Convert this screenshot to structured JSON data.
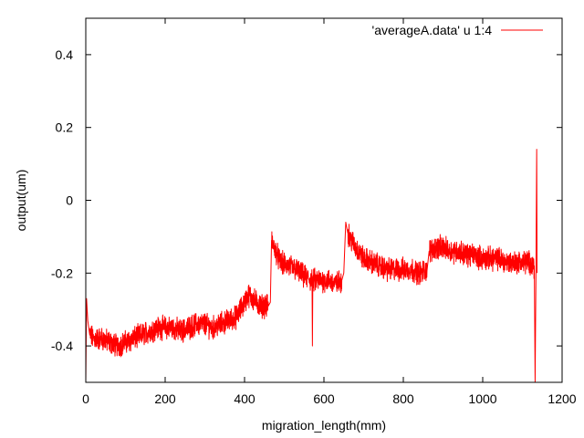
{
  "chart_data": {
    "type": "line",
    "title": "",
    "xlabel": "migration_length(mm)",
    "ylabel": "output(um)",
    "xlim": [
      0,
      1200
    ],
    "ylim": [
      -0.5,
      0.5
    ],
    "x_ticks": [
      0,
      200,
      400,
      600,
      800,
      1000,
      1200
    ],
    "x_tick_labels": [
      "0",
      "200",
      "400",
      "600",
      "800",
      "1000",
      "1200"
    ],
    "y_ticks": [
      -0.4,
      -0.2,
      0,
      0.2,
      0.4
    ],
    "y_tick_labels": [
      "-0.4",
      "-0.2",
      "0",
      "0.2",
      "0.4"
    ],
    "grid": false,
    "legend_position": "top-right",
    "series": [
      {
        "name": "'averageA.data' u 1:4",
        "color": "#ff0000",
        "noise_amplitude": 0.025,
        "points": [
          [
            0,
            -0.5
          ],
          [
            2,
            -0.27
          ],
          [
            5,
            -0.33
          ],
          [
            10,
            -0.37
          ],
          [
            20,
            -0.38
          ],
          [
            40,
            -0.38
          ],
          [
            60,
            -0.39
          ],
          [
            80,
            -0.4
          ],
          [
            100,
            -0.39
          ],
          [
            120,
            -0.38
          ],
          [
            140,
            -0.37
          ],
          [
            160,
            -0.36
          ],
          [
            180,
            -0.35
          ],
          [
            200,
            -0.35
          ],
          [
            220,
            -0.35
          ],
          [
            240,
            -0.36
          ],
          [
            260,
            -0.35
          ],
          [
            280,
            -0.34
          ],
          [
            300,
            -0.34
          ],
          [
            320,
            -0.35
          ],
          [
            340,
            -0.34
          ],
          [
            360,
            -0.33
          ],
          [
            380,
            -0.32
          ],
          [
            400,
            -0.28
          ],
          [
            410,
            -0.26
          ],
          [
            420,
            -0.27
          ],
          [
            440,
            -0.29
          ],
          [
            460,
            -0.29
          ],
          [
            465,
            -0.28
          ],
          [
            468,
            -0.11
          ],
          [
            475,
            -0.13
          ],
          [
            490,
            -0.17
          ],
          [
            510,
            -0.18
          ],
          [
            530,
            -0.19
          ],
          [
            550,
            -0.21
          ],
          [
            570,
            -0.22
          ],
          [
            571,
            -0.4
          ],
          [
            572,
            -0.22
          ],
          [
            590,
            -0.22
          ],
          [
            610,
            -0.22
          ],
          [
            630,
            -0.23
          ],
          [
            645,
            -0.22
          ],
          [
            650,
            -0.2
          ],
          [
            655,
            -0.06
          ],
          [
            660,
            -0.09
          ],
          [
            680,
            -0.13
          ],
          [
            700,
            -0.16
          ],
          [
            720,
            -0.17
          ],
          [
            740,
            -0.18
          ],
          [
            760,
            -0.19
          ],
          [
            780,
            -0.19
          ],
          [
            800,
            -0.19
          ],
          [
            820,
            -0.19
          ],
          [
            840,
            -0.2
          ],
          [
            860,
            -0.19
          ],
          [
            865,
            -0.14
          ],
          [
            880,
            -0.13
          ],
          [
            900,
            -0.13
          ],
          [
            920,
            -0.14
          ],
          [
            940,
            -0.14
          ],
          [
            960,
            -0.15
          ],
          [
            980,
            -0.15
          ],
          [
            1000,
            -0.16
          ],
          [
            1020,
            -0.16
          ],
          [
            1040,
            -0.16
          ],
          [
            1060,
            -0.17
          ],
          [
            1080,
            -0.17
          ],
          [
            1100,
            -0.17
          ],
          [
            1120,
            -0.17
          ],
          [
            1130,
            -0.18
          ],
          [
            1132,
            -0.5
          ],
          [
            1134,
            -0.22
          ],
          [
            1136,
            0.14
          ],
          [
            1137,
            -0.2
          ]
        ]
      }
    ]
  }
}
